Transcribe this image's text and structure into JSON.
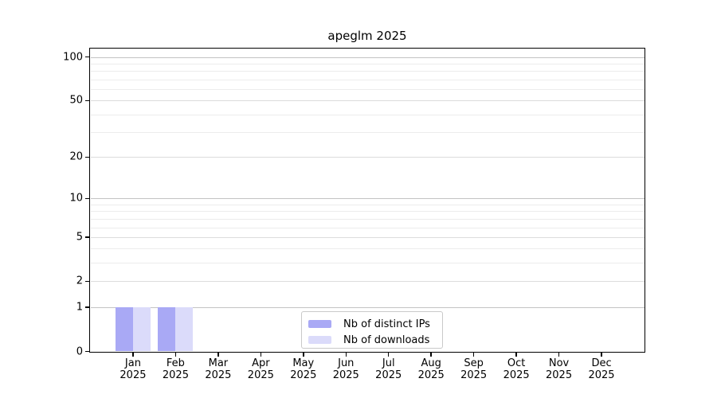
{
  "chart_data": {
    "type": "bar",
    "title": "apeglm 2025",
    "year": "2025",
    "categories": [
      "Jan",
      "Feb",
      "Mar",
      "Apr",
      "May",
      "Jun",
      "Jul",
      "Aug",
      "Sep",
      "Oct",
      "Nov",
      "Dec"
    ],
    "series": [
      {
        "name": "Nb of distinct IPs",
        "color": "#a9a9f5",
        "values": [
          1,
          1,
          0,
          0,
          0,
          0,
          0,
          0,
          0,
          0,
          0,
          0
        ]
      },
      {
        "name": "Nb of downloads",
        "color": "#dbdbfa",
        "values": [
          1,
          1,
          0,
          0,
          0,
          0,
          0,
          0,
          0,
          0,
          0,
          0
        ]
      }
    ],
    "yscale": "log1p",
    "ylim": [
      0,
      113.5
    ],
    "y_major_ticks": [
      0,
      1,
      2,
      5,
      10,
      20,
      50,
      100
    ],
    "y_decade_gridlines": [
      1,
      10,
      100
    ],
    "y_minor_gridlines": [
      3,
      4,
      6,
      7,
      8,
      9,
      30,
      40,
      60,
      70,
      80,
      90
    ],
    "grid": "horizontal, major and minor, on",
    "legend_position": "lower center inside plot",
    "axis_color": "#000000"
  }
}
